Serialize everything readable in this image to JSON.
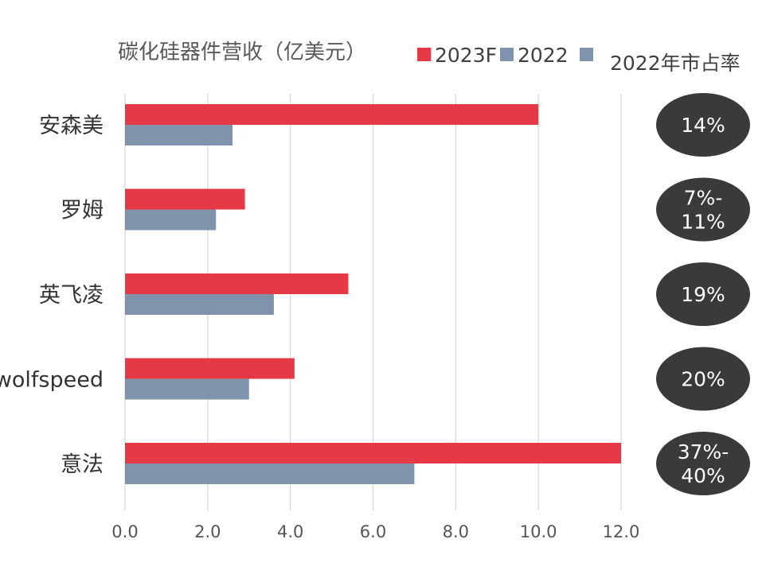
{
  "chart_data": {
    "type": "bar",
    "orientation": "horizontal",
    "title": "碳化硅器件营收（亿美元）",
    "categories": [
      "安森美",
      "罗姆",
      "英飞凌",
      "wolfspeed",
      "意法"
    ],
    "series": [
      {
        "name": "2023F",
        "color": "#e63946",
        "values": [
          10.0,
          2.9,
          5.4,
          4.1,
          12.0
        ]
      },
      {
        "name": "2022",
        "color": "#7f93ac",
        "values": [
          2.6,
          2.2,
          3.6,
          3.0,
          7.0
        ]
      }
    ],
    "market_share": {
      "name": "2022年市占率",
      "color": "#7f93ac",
      "values": [
        [
          "14%"
        ],
        [
          "7%-",
          "11%"
        ],
        [
          "19%"
        ],
        [
          "20%"
        ],
        [
          "37%-",
          "40%"
        ]
      ]
    },
    "xlim": [
      0,
      12
    ],
    "ticks": [
      "0.0",
      "2.0",
      "4.0",
      "6.0",
      "8.0",
      "10.0",
      "12.0"
    ],
    "tick_values": [
      0,
      2,
      4,
      6,
      8,
      10,
      12
    ],
    "grid": true,
    "legend_position": "top-right"
  }
}
